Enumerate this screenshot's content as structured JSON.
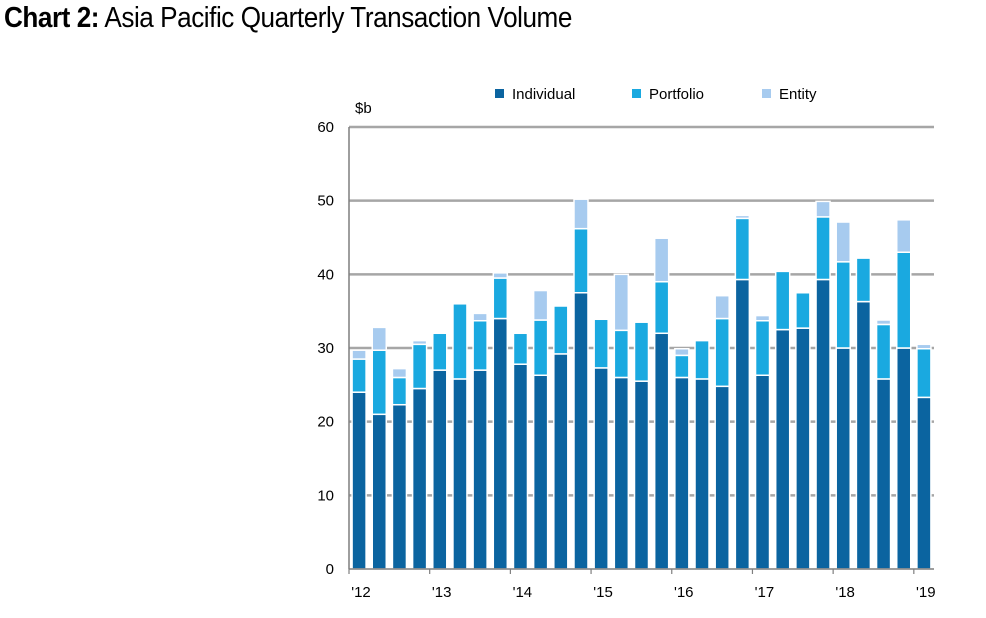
{
  "title": {
    "prefix": "Chart 2:",
    "text": "Asia Pacific Quarterly Transaction Volume"
  },
  "chart_data": {
    "type": "bar",
    "stacked": true,
    "unit_label": "$b",
    "ylim": [
      0,
      60
    ],
    "yticks": [
      0,
      10,
      20,
      30,
      40,
      50,
      60
    ],
    "grid": true,
    "legend_position": "top",
    "x_labels": [
      {
        "label": "'12",
        "index": 0
      },
      {
        "label": "'13",
        "index": 4
      },
      {
        "label": "'14",
        "index": 8
      },
      {
        "label": "'15",
        "index": 12
      },
      {
        "label": "'16",
        "index": 16
      },
      {
        "label": "'17",
        "index": 20
      },
      {
        "label": "'18",
        "index": 24
      },
      {
        "label": "'19",
        "index": 28
      }
    ],
    "series": [
      {
        "name": "Individual",
        "color": "#0b64a0",
        "values": [
          24,
          21,
          22.3,
          24.5,
          27,
          25.8,
          27,
          34,
          27.8,
          26.3,
          29.2,
          37.5,
          27.3,
          26,
          25.5,
          32,
          26,
          25.8,
          24.8,
          39.3,
          26.3,
          32.5,
          32.7,
          39.3,
          30,
          36.3,
          25.8,
          30,
          23.3
        ]
      },
      {
        "name": "Portfolio",
        "color": "#1aa9e0",
        "values": [
          4.5,
          8.7,
          3.7,
          6.0,
          5.0,
          10.2,
          6.7,
          5.5,
          4.2,
          7.5,
          6.5,
          8.7,
          6.6,
          6.4,
          8.0,
          7.0,
          3.0,
          5.2,
          9.2,
          8.3,
          7.4,
          7.9,
          4.8,
          8.5,
          11.7,
          5.9,
          7.4,
          13.0,
          6.6
        ]
      },
      {
        "name": "Entity",
        "color": "#a7cbef",
        "values": [
          1.2,
          3.1,
          1.2,
          0.5,
          0,
          0,
          1.0,
          0.7,
          0,
          4.0,
          0,
          4.0,
          0,
          7.6,
          0,
          5.9,
          0.9,
          0,
          3.1,
          0.4,
          0.7,
          0,
          0,
          2.1,
          5.4,
          0,
          0.6,
          4.4,
          0.6
        ]
      }
    ]
  }
}
